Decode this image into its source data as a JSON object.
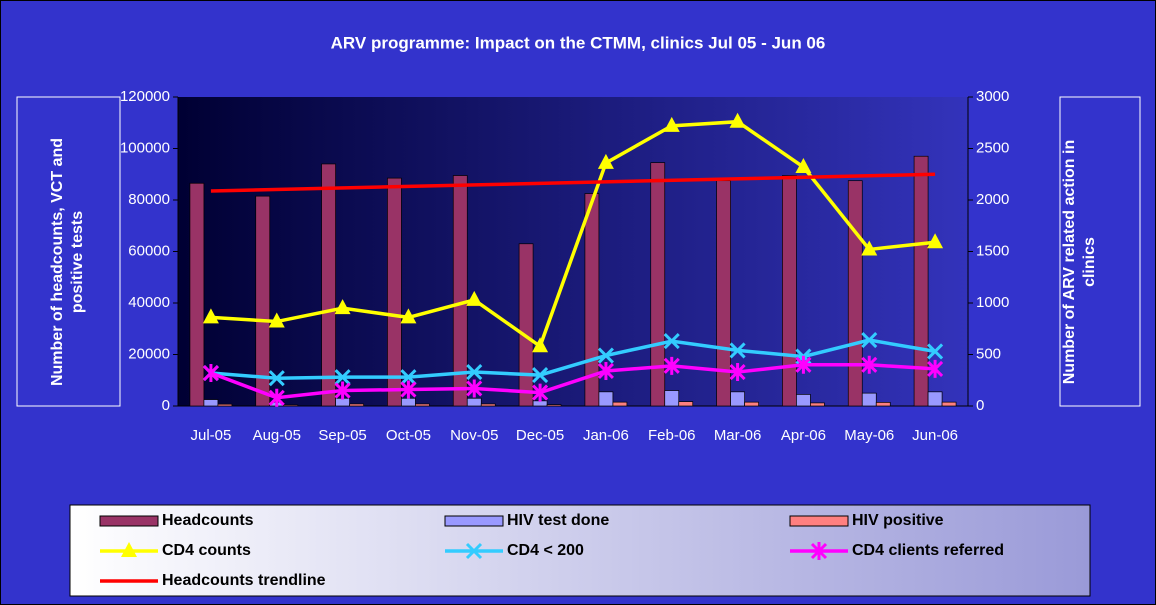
{
  "chart_data": {
    "type": "combo",
    "title": "ARV programme: Impact on the CTMM, clinics Jul 05 - Jun 06",
    "y_label": "Number of headcounts, VCT and positive tests",
    "y2_label": "Number of ARV related action in clinics",
    "categories": [
      "Jul-05",
      "Aug-05",
      "Sep-05",
      "Oct-05",
      "Nov-05",
      "Dec-05",
      "Jan-06",
      "Feb-06",
      "Mar-06",
      "Apr-06",
      "May-06",
      "Jun-06"
    ],
    "ylim": [
      0,
      120000
    ],
    "yticks": [
      0,
      20000,
      40000,
      60000,
      80000,
      100000,
      120000
    ],
    "y2lim": [
      0,
      3000
    ],
    "y2ticks": [
      0,
      500,
      1000,
      1500,
      2000,
      2500,
      3000
    ],
    "series": [
      {
        "name": "Headcounts",
        "type": "bar",
        "color": "#993366",
        "values": [
          86500,
          81500,
          94000,
          88500,
          89500,
          63000,
          82500,
          94500,
          87500,
          89500,
          87500,
          97000
        ]
      },
      {
        "name": "HIV test done",
        "type": "bar",
        "color": "#9999ff",
        "values": [
          2500,
          1500,
          3000,
          3000,
          3000,
          2000,
          5500,
          6000,
          5500,
          4500,
          5000,
          5500
        ]
      },
      {
        "name": "HIV positive",
        "type": "bar",
        "color": "#ff8080",
        "values": [
          700,
          400,
          800,
          800,
          800,
          500,
          1500,
          1700,
          1500,
          1200,
          1400,
          1500
        ]
      },
      {
        "name": "CD4 counts",
        "type": "line",
        "marker": "triangle",
        "axis": "y2",
        "color": "#ffff00",
        "values": [
          860,
          820,
          950,
          860,
          1030,
          580,
          2360,
          2720,
          2760,
          2320,
          1520,
          1590
        ]
      },
      {
        "name": "CD4 < 200",
        "type": "line",
        "marker": "x",
        "axis": "y2",
        "color": "#33ccff",
        "values": [
          320,
          270,
          280,
          280,
          330,
          300,
          490,
          630,
          540,
          480,
          640,
          530
        ]
      },
      {
        "name": "CD4 clients referred",
        "type": "line",
        "marker": "star",
        "axis": "y2",
        "color": "#ff00ff",
        "values": [
          320,
          80,
          150,
          160,
          170,
          130,
          340,
          390,
          330,
          400,
          400,
          360
        ]
      },
      {
        "name": "Headcounts trendline",
        "type": "line",
        "color": "#ff0000",
        "values": [
          83500,
          84100,
          84700,
          85300,
          85900,
          86500,
          87100,
          87700,
          88300,
          88900,
          89500,
          90000
        ]
      }
    ]
  }
}
